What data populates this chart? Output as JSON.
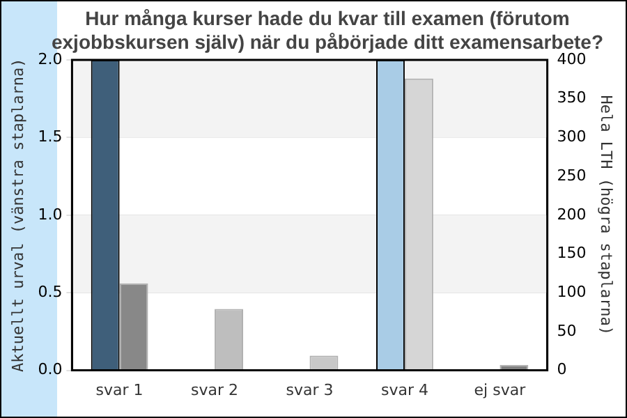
{
  "chart_data": {
    "type": "bar",
    "title": "Hur många kurser hade du kvar till examen (förutom exjobbskursen själv) när du påbörjade ditt examensarbete?",
    "ylabel": "Aktuellt urval (vänstra staplarna)",
    "y2label": "Hela LTH (högra staplarna)",
    "categories": [
      "svar 1",
      "svar 2",
      "svar 3",
      "svar 4",
      "ej svar"
    ],
    "series": [
      {
        "values": [
          2,
          0,
          0,
          2,
          0
        ],
        "colors": [
          "#3f5f7a",
          "#3f5f7a",
          "#3f5f7a",
          "#a9cce6",
          "#3f5f7a"
        ]
      },
      {
        "axis": "y2",
        "values": [
          112,
          79,
          19,
          376,
          7
        ],
        "colors": [
          "#888888",
          "#bebebe",
          "#c8c8c8",
          "#d6d6d6",
          "#808080"
        ]
      }
    ],
    "ylim": [
      0,
      2
    ],
    "yticks": [
      {
        "value": 0,
        "label": "0.0"
      },
      {
        "value": 0.5,
        "label": "0.5"
      },
      {
        "value": 1,
        "label": "1.0"
      },
      {
        "value": 1.5,
        "label": "1.5"
      },
      {
        "value": 2,
        "label": "2.0"
      }
    ],
    "y2lim": [
      0,
      400
    ],
    "y2ticks": [
      0,
      50,
      100,
      150,
      200,
      250,
      300,
      350,
      400
    ],
    "bands": [
      {
        "axis": "y",
        "from": 1.5,
        "to": 2,
        "color": "#f3f3f3"
      },
      {
        "axis": "y",
        "from": 0.5,
        "to": 1,
        "color": "#f3f3f3"
      }
    ],
    "grid": "y",
    "legend": false
  }
}
